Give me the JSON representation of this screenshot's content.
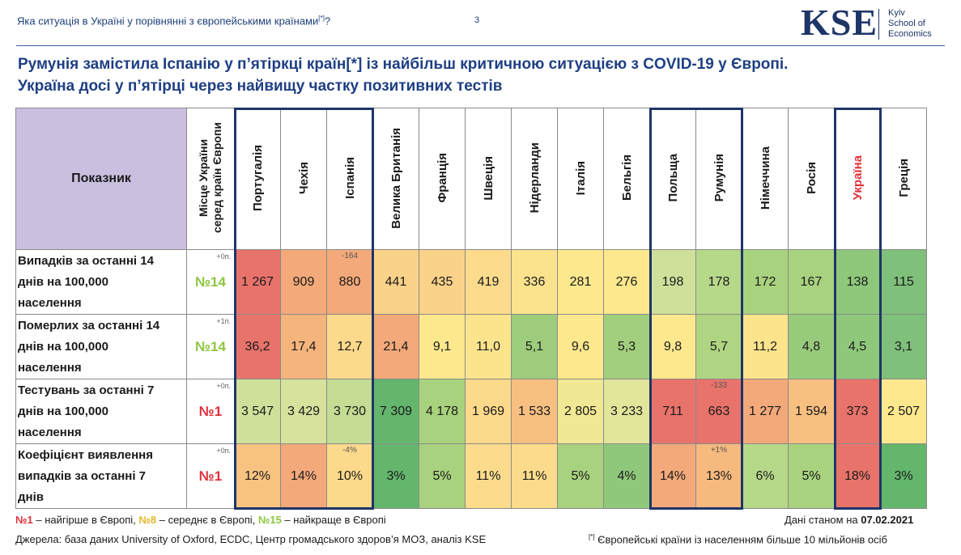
{
  "header": {
    "title": "Яка ситуація в Україні  у порівнянні  з європейськими країнами",
    "title_sup": "[*]",
    "title_end": "?",
    "page_number": "3",
    "logo": {
      "text": "KSE",
      "line1": "Kyiv",
      "line2": "School of",
      "line3": "Economics"
    }
  },
  "headline": {
    "line1": "Румунія замістила Іспанію у п’ятіркці країн[*] із найбільш критичною ситуацією з COVID-19 у Європі.",
    "line2": "Україна досі у п’ятірці через найвищу частку позитивних тестів"
  },
  "table": {
    "indicator_header": "Показник",
    "rank_header_line1": "Місце України",
    "rank_header_line2": "серед країн Європи",
    "countries": [
      "Португалія",
      "Чехія",
      "Іспанія",
      "Велика Британія",
      "Франція",
      "Швеція",
      "Нідерланди",
      "Італія",
      "Бельгія",
      "Польща",
      "Румунія",
      "Німеччина",
      "Росія",
      "Україна",
      "Греція"
    ],
    "rows": [
      {
        "label_lines": [
          "Випадків за останні 14",
          "днів на 100,000",
          "населення"
        ],
        "rank": "№14",
        "rank_color": "#8cc63f",
        "delta": "+0п.",
        "values": [
          "1 267",
          "909",
          "880",
          "441",
          "435",
          "419",
          "336",
          "281",
          "276",
          "198",
          "178",
          "172",
          "167",
          "138",
          "115"
        ],
        "colors": [
          "#e8736b",
          "#f3a97a",
          "#f3a97a",
          "#fbd289",
          "#fbd289",
          "#fcdc8c",
          "#fbe28d",
          "#fde88e",
          "#fde88e",
          "#cfe09a",
          "#b6d889",
          "#a8d27e",
          "#a8d27e",
          "#8fc87b",
          "#7fc07a"
        ],
        "notes": [
          "",
          "",
          "-164",
          "",
          "",
          "",
          "",
          "",
          "",
          "",
          "",
          "",
          "",
          "",
          ""
        ]
      },
      {
        "label_lines": [
          "Померлих за останні 14",
          "днів на 100,000",
          "населення"
        ],
        "rank": "№14",
        "rank_color": "#8cc63f",
        "delta": "+1п.",
        "values": [
          "36,2",
          "17,4",
          "12,7",
          "21,4",
          "9,1",
          "11,0",
          "5,1",
          "9,6",
          "5,3",
          "9,8",
          "5,7",
          "11,2",
          "4,8",
          "4,5",
          "3,1"
        ],
        "colors": [
          "#e8736b",
          "#f5b47c",
          "#fcd98b",
          "#f3a97a",
          "#fde88e",
          "#fce48d",
          "#9ccc7c",
          "#fde88e",
          "#a2cf7d",
          "#fde88e",
          "#b0d582",
          "#fce48d",
          "#98ca7b",
          "#8fc87b",
          "#7fc07a"
        ],
        "notes": [
          "",
          "",
          "",
          "",
          "",
          "",
          "",
          "",
          "",
          "",
          "",
          "",
          "",
          "",
          ""
        ]
      },
      {
        "label_lines": [
          "Тестувань за останні 7",
          "днів на 100,000",
          "населення"
        ],
        "rank": "№1",
        "rank_color": "#e0303a",
        "delta": "+0п.",
        "values": [
          "3 547",
          "3 429",
          "3 730",
          "7 309",
          "4 178",
          "1 969",
          "1 533",
          "2 805",
          "3 233",
          "711",
          "663",
          "1 277",
          "1 594",
          "373",
          "2 507"
        ],
        "colors": [
          "#cfe09a",
          "#d7e29c",
          "#c4dc93",
          "#63b66c",
          "#a8d27e",
          "#fcd98b",
          "#f7bf80",
          "#f0e894",
          "#e2e69a",
          "#e8736b",
          "#e8736b",
          "#f3a97a",
          "#f7bf80",
          "#e8736b",
          "#fde88e"
        ],
        "notes": [
          "",
          "",
          "",
          "",
          "",
          "",
          "",
          "",
          "",
          "",
          "-133",
          "",
          "",
          "",
          ""
        ]
      },
      {
        "label_lines": [
          "Коефіцієнт виявлення",
          "випадків за останні 7",
          "днів"
        ],
        "rank": "№1",
        "rank_color": "#e0303a",
        "delta": "+0п.",
        "values": [
          "12%",
          "14%",
          "10%",
          "3%",
          "5%",
          "11%",
          "11%",
          "5%",
          "4%",
          "14%",
          "13%",
          "6%",
          "5%",
          "18%",
          "3%"
        ],
        "colors": [
          "#f8c381",
          "#f3a97a",
          "#fcd98b",
          "#63b66c",
          "#a8d27e",
          "#fcdc8c",
          "#fcdc8c",
          "#a8d27e",
          "#8fc87b",
          "#f3a97a",
          "#f6b97e",
          "#b6d889",
          "#a8d27e",
          "#e8736b",
          "#63b66c"
        ],
        "notes": [
          "",
          "",
          "-4%",
          "",
          "",
          "",
          "",
          "",
          "",
          "",
          "+1%",
          "",
          "",
          "",
          ""
        ]
      }
    ]
  },
  "legend": {
    "n1": "№1",
    "n1_text": " – найгірше в Європі, ",
    "n8": "№8",
    "n8_text": " – середнє в Європі, ",
    "n15": "№15",
    "n15_text": " – найкраще  в Європі"
  },
  "as_of": {
    "label": "Дані станом на ",
    "date": "07.02.2021"
  },
  "source": "Джерела: база даних University of Oxford,  ECDC, Центр громадського здоров’я МОЗ,  аналіз KSE",
  "footnote": {
    "sup": "[*]",
    "text": " Європейські країни із населенням  більше  10 мільйонів осіб"
  },
  "colors": {
    "accent": "#1e3568",
    "highlight_red": "#e0303a",
    "header_fill": "#cbbfe0"
  }
}
